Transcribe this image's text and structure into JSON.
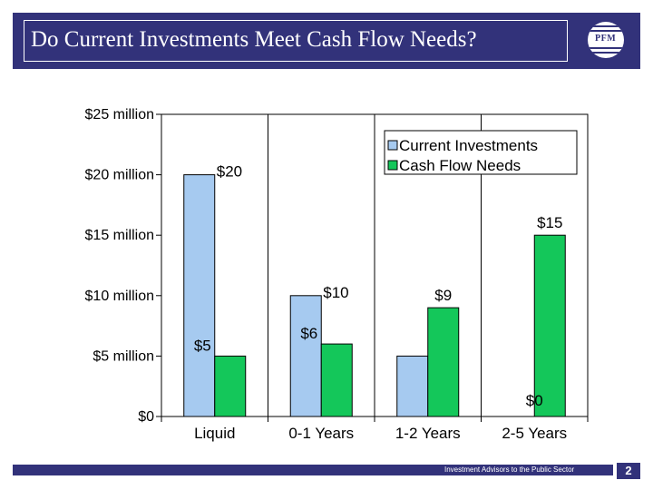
{
  "slide": {
    "title": "Do Current Investments Meet Cash Flow Needs?",
    "logo_text": "PFM",
    "footer": "Investment Advisors to the Public Sector",
    "page_number": "2"
  },
  "colors": {
    "title_band": "#32327a",
    "current_investments": "#a6caf0",
    "cash_flow_needs": "#14c75a"
  },
  "chart_data": {
    "type": "bar",
    "categories": [
      "Liquid",
      "0-1 Years",
      "1-2 Years",
      "2-5 Years"
    ],
    "series": [
      {
        "name": "Current Investments",
        "values": [
          20,
          10,
          5,
          null
        ],
        "labels": [
          "$20",
          "$10",
          "$5",
          ""
        ],
        "color": "#a6caf0"
      },
      {
        "name": "Cash Flow Needs",
        "values": [
          5,
          6,
          9,
          15
        ],
        "labels": [
          "$5",
          "$6",
          "$9",
          "$15"
        ],
        "color": "#14c75a"
      }
    ],
    "zero_labels": [
      {
        "category": "2-5 Years",
        "text": "$0"
      }
    ],
    "y_ticks": [
      {
        "value": 0,
        "label": "$0"
      },
      {
        "value": 5,
        "label": "$5 million"
      },
      {
        "value": 10,
        "label": "$10 million"
      },
      {
        "value": 15,
        "label": "$15 million"
      },
      {
        "value": 20,
        "label": "$20 million"
      },
      {
        "value": 25,
        "label": "$25 million"
      }
    ],
    "ylim": [
      0,
      25
    ],
    "legend_placement": "top-right",
    "grid": false
  }
}
